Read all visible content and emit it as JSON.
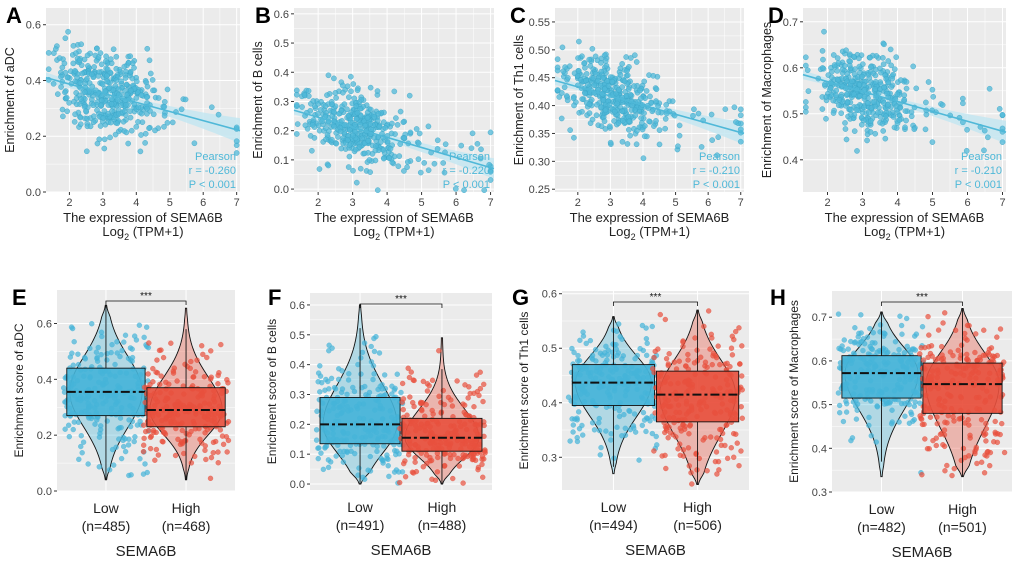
{
  "colors": {
    "scatter": "#4fb8d8",
    "trend": "#4fb8d8",
    "band": "#c4e6f1",
    "panel_bg": "#ebebeb",
    "grid": "#ffffff",
    "low": "#45b4d8",
    "high": "#e8503d",
    "text": "#222222"
  },
  "chart_data": [
    {
      "type": "scatter",
      "panel": "A",
      "xlabel": "The expression of SEMA6B",
      "xlabel_sub_prefix": "Log",
      "xlabel_sub_index": "2",
      "xlabel_sub_suffix": " (TPM+1)",
      "ylabel": "Enrichment of aDC",
      "xlim": [
        1.3,
        7.1
      ],
      "ylim": [
        0.0,
        0.66
      ],
      "xticks": [
        2,
        3,
        4,
        5,
        6,
        7
      ],
      "xtick_labels": [
        "2",
        "3",
        "4",
        "5",
        "6",
        "7"
      ],
      "yticks": [
        0.0,
        0.2,
        0.4,
        0.6
      ],
      "ytick_labels": [
        "0.0",
        "0.2",
        "0.4",
        "0.6"
      ],
      "trend": {
        "x": [
          1.3,
          7.1
        ],
        "y": [
          0.41,
          0.22
        ]
      },
      "ci_halfwidth_mid": 0.012,
      "ci_halfwidth_end": 0.045,
      "n_points": 420,
      "x_center": 3.1,
      "x_spread": 0.75,
      "y_noise": 0.12,
      "annotation": {
        "method": "Pearson",
        "r": "r = -0.260",
        "p": "P < 0.001"
      }
    },
    {
      "type": "scatter",
      "panel": "B",
      "xlabel": "The expression of SEMA6B",
      "xlabel_sub_prefix": "Log",
      "xlabel_sub_index": "2",
      "xlabel_sub_suffix": " (TPM+1)",
      "ylabel": "Enrichment of B cells",
      "xlim": [
        1.3,
        7.1
      ],
      "ylim": [
        -0.01,
        0.62
      ],
      "xticks": [
        2,
        3,
        4,
        5,
        6,
        7
      ],
      "xtick_labels": [
        "2",
        "3",
        "4",
        "5",
        "6",
        "7"
      ],
      "yticks": [
        0.0,
        0.1,
        0.2,
        0.3,
        0.4,
        0.5,
        0.6
      ],
      "ytick_labels": [
        "0.0",
        "0.1",
        "0.2",
        "0.3",
        "0.4",
        "0.5",
        "0.6"
      ],
      "trend": {
        "x": [
          1.3,
          7.1
        ],
        "y": [
          0.27,
          0.07
        ]
      },
      "ci_halfwidth_mid": 0.01,
      "ci_halfwidth_end": 0.035,
      "n_points": 420,
      "x_center": 3.1,
      "x_spread": 0.75,
      "y_noise": 0.1,
      "annotation": {
        "method": "Pearson",
        "r": "r = -0.220",
        "p": "P < 0.001"
      }
    },
    {
      "type": "scatter",
      "panel": "C",
      "xlabel": "The expression of SEMA6B",
      "xlabel_sub_prefix": "Log",
      "xlabel_sub_index": "2",
      "xlabel_sub_suffix": " (TPM+1)",
      "ylabel": "Enrichment of Th1 cells",
      "xlim": [
        1.3,
        7.1
      ],
      "ylim": [
        0.245,
        0.575
      ],
      "xticks": [
        2,
        3,
        4,
        5,
        6,
        7
      ],
      "xtick_labels": [
        "2",
        "3",
        "4",
        "5",
        "6",
        "7"
      ],
      "yticks": [
        0.25,
        0.3,
        0.35,
        0.4,
        0.45,
        0.5,
        0.55
      ],
      "ytick_labels": [
        "0.25",
        "0.30",
        "0.35",
        "0.40",
        "0.45",
        "0.50",
        "0.55"
      ],
      "trend": {
        "x": [
          1.3,
          7.1
        ],
        "y": [
          0.445,
          0.35
        ]
      },
      "ci_halfwidth_mid": 0.005,
      "ci_halfwidth_end": 0.02,
      "n_points": 420,
      "x_center": 3.1,
      "x_spread": 0.75,
      "y_noise": 0.055,
      "annotation": {
        "method": "Pearson",
        "r": "r = -0.210",
        "p": "P < 0.001"
      }
    },
    {
      "type": "scatter",
      "panel": "D",
      "xlabel": "The expression of SEMA6B",
      "xlabel_sub_prefix": "Log",
      "xlabel_sub_index": "2",
      "xlabel_sub_suffix": " (TPM+1)",
      "ylabel": "Enrichment of Macrophages",
      "xlim": [
        1.3,
        7.1
      ],
      "ylim": [
        0.33,
        0.73
      ],
      "xticks": [
        2,
        3,
        4,
        5,
        6,
        7
      ],
      "xtick_labels": [
        "2",
        "3",
        "4",
        "5",
        "6",
        "7"
      ],
      "yticks": [
        0.4,
        0.5,
        0.6,
        0.7
      ],
      "ytick_labels": [
        "0.4",
        "0.5",
        "0.6",
        "0.7"
      ],
      "trend": {
        "x": [
          1.3,
          7.1
        ],
        "y": [
          0.585,
          0.46
        ]
      },
      "ci_halfwidth_mid": 0.006,
      "ci_halfwidth_end": 0.025,
      "n_points": 420,
      "x_center": 3.1,
      "x_spread": 0.75,
      "y_noise": 0.07,
      "annotation": {
        "method": "Pearson",
        "r": "r = -0.210",
        "p": "P < 0.001"
      }
    },
    {
      "type": "box_violin",
      "panel": "E",
      "ylabel": "Enrichment score of aDC",
      "xlabel": "SEMA6B",
      "ylim": [
        0.0,
        0.72
      ],
      "yticks": [
        0.0,
        0.2,
        0.4,
        0.6
      ],
      "ytick_labels": [
        "0.0",
        "0.2",
        "0.4",
        "0.6"
      ],
      "significance": "***",
      "groups": [
        {
          "name": "Low",
          "n_label": "(n=485)",
          "min": 0.04,
          "q1": 0.27,
          "median": 0.355,
          "q3": 0.44,
          "max": 0.665
        },
        {
          "name": "High",
          "n_label": "(n=468)",
          "min": 0.04,
          "q1": 0.23,
          "median": 0.29,
          "q3": 0.37,
          "max": 0.655
        }
      ]
    },
    {
      "type": "box_violin",
      "panel": "F",
      "ylabel": "Enrichment score of B cells",
      "xlabel": "SEMA6B",
      "ylim": [
        -0.02,
        0.64
      ],
      "yticks": [
        0.0,
        0.1,
        0.2,
        0.3,
        0.4,
        0.5,
        0.6
      ],
      "ytick_labels": [
        "0.0",
        "0.1",
        "0.2",
        "0.3",
        "0.4",
        "0.5",
        "0.6"
      ],
      "significance": "***",
      "groups": [
        {
          "name": "Low",
          "n_label": "(n=491)",
          "min": 0.0,
          "q1": 0.135,
          "median": 0.2,
          "q3": 0.29,
          "max": 0.6
        },
        {
          "name": "High",
          "n_label": "(n=488)",
          "min": 0.0,
          "q1": 0.11,
          "median": 0.155,
          "q3": 0.22,
          "max": 0.49
        }
      ]
    },
    {
      "type": "box_violin",
      "panel": "G",
      "ylabel": "Enrichment score of Th1 cells",
      "xlabel": "SEMA6B",
      "ylim": [
        0.24,
        0.605
      ],
      "yticks": [
        0.3,
        0.4,
        0.5,
        0.6
      ],
      "ytick_labels": [
        "0.3",
        "0.4",
        "0.5",
        "0.6"
      ],
      "significance": "***",
      "groups": [
        {
          "name": "Low",
          "n_label": "(n=494)",
          "min": 0.27,
          "q1": 0.395,
          "median": 0.437,
          "q3": 0.47,
          "max": 0.558
        },
        {
          "name": "High",
          "n_label": "(n=506)",
          "min": 0.25,
          "q1": 0.365,
          "median": 0.415,
          "q3": 0.458,
          "max": 0.57
        }
      ]
    },
    {
      "type": "box_violin",
      "panel": "H",
      "ylabel": "Enrichment score of Macrophages",
      "xlabel": "SEMA6B",
      "ylim": [
        0.3,
        0.76
      ],
      "yticks": [
        0.3,
        0.4,
        0.5,
        0.6,
        0.7
      ],
      "ytick_labels": [
        "0.3",
        "0.4",
        "0.5",
        "0.6",
        "0.7"
      ],
      "significance": "***",
      "groups": [
        {
          "name": "Low",
          "n_label": "(n=482)",
          "min": 0.335,
          "q1": 0.515,
          "median": 0.572,
          "q3": 0.612,
          "max": 0.712
        },
        {
          "name": "High",
          "n_label": "(n=501)",
          "min": 0.335,
          "q1": 0.48,
          "median": 0.547,
          "q3": 0.595,
          "max": 0.72
        }
      ]
    }
  ]
}
